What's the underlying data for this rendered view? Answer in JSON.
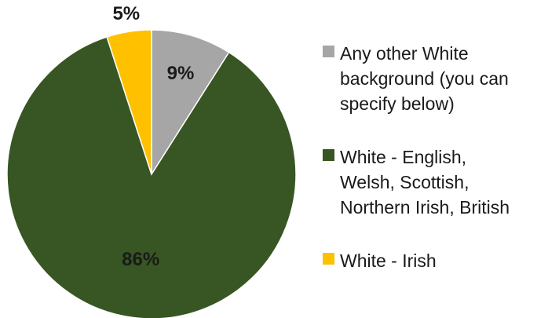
{
  "chart_data": {
    "type": "pie",
    "slices": [
      {
        "label": "Any other White\nbackground (you can\nspecify below)",
        "value": 9,
        "display": "9%",
        "color": "#a6a6a6"
      },
      {
        "label": "White - English,\nWelsh, Scottish,\nNorthern Irish, British",
        "value": 86,
        "display": "86%",
        "color": "#375623"
      },
      {
        "label": "White - Irish",
        "value": 5,
        "display": "5%",
        "color": "#ffc000"
      }
    ],
    "legend_position": "right"
  }
}
